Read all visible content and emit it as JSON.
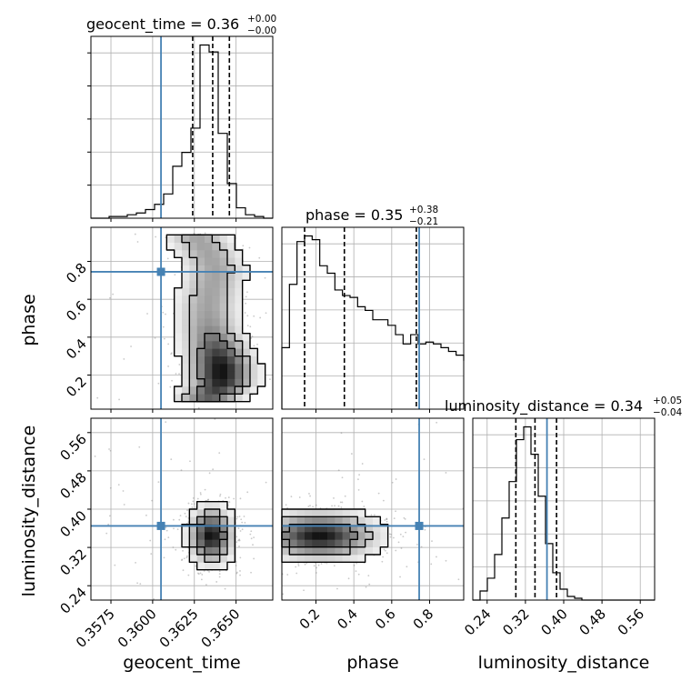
{
  "chart_data": {
    "type": "corner",
    "truth_color": "#4682b4",
    "parameters": [
      {
        "name": "geocent_time",
        "axis_label": "geocent_time",
        "truth": 0.3605,
        "median": 0.36,
        "plus": 0.0,
        "minus": 0.0,
        "title_main": "geocent_time = 0.36",
        "title_plus": "+0.00",
        "title_minus": "−0.00",
        "range": [
          0.3563,
          0.3672
        ],
        "ticks": [
          0.3575,
          0.36,
          0.3625,
          0.365
        ],
        "tick_labels": [
          "0.3575",
          "0.3600",
          "0.3625",
          "0.3650"
        ],
        "quantiles": [
          0.3624,
          0.3636,
          0.3646
        ],
        "hist_edges_start": 0.3563,
        "hist_bin_width": 0.000545,
        "hist_counts": [
          0,
          0,
          1,
          1,
          2,
          3,
          5,
          8,
          14,
          30,
          38,
          52,
          100,
          96,
          49,
          20,
          6,
          2,
          1,
          0
        ]
      },
      {
        "name": "phase",
        "axis_label": "phase",
        "truth": 0.745,
        "median": 0.35,
        "plus": 0.38,
        "minus": 0.21,
        "title_main": "phase = 0.35",
        "title_plus": "+0.38",
        "title_minus": "−0.21",
        "range": [
          0.02,
          0.98
        ],
        "ticks": [
          0.2,
          0.4,
          0.6,
          0.8
        ],
        "tick_labels": [
          "0.2",
          "0.4",
          "0.6",
          "0.8"
        ],
        "quantiles": [
          0.14,
          0.35,
          0.73
        ],
        "hist_edges_start": 0.02,
        "hist_bin_width": 0.04,
        "hist_counts": [
          33,
          67,
          90,
          93,
          91,
          77,
          73,
          64,
          61,
          60,
          55,
          53,
          48,
          48,
          45,
          40,
          35,
          40,
          35,
          36,
          35,
          33,
          31,
          29,
          26
        ]
      },
      {
        "name": "luminosity_distance",
        "axis_label": "luminosity_distance",
        "truth": 0.365,
        "median": 0.34,
        "plus": 0.05,
        "minus": 0.04,
        "title_main": "luminosity_distance = 0.34",
        "title_plus": "+0.05",
        "title_minus": "−0.04",
        "range": [
          0.21,
          0.59
        ],
        "ticks": [
          0.24,
          0.32,
          0.4,
          0.48,
          0.56
        ],
        "tick_labels": [
          "0.24",
          "0.32",
          "0.40",
          "0.48",
          "0.56"
        ],
        "quantiles": [
          0.3,
          0.34,
          0.385
        ],
        "hist_edges_start": 0.21,
        "hist_bin_width": 0.0152,
        "hist_counts": [
          0,
          5,
          12,
          25,
          45,
          65,
          88,
          95,
          80,
          57,
          31,
          15,
          6,
          2,
          1,
          0,
          0,
          0,
          0,
          0,
          0,
          0,
          0,
          0,
          0
        ]
      }
    ],
    "pairs": [
      {
        "x": "geocent_time",
        "y": "phase",
        "ridge": [
          [
            0.3625,
            0.95
          ],
          [
            0.3633,
            0.85
          ],
          [
            0.3638,
            0.75
          ],
          [
            0.3635,
            0.65
          ],
          [
            0.3633,
            0.55
          ],
          [
            0.3634,
            0.45
          ],
          [
            0.3638,
            0.35
          ],
          [
            0.3641,
            0.25
          ],
          [
            0.3641,
            0.15
          ],
          [
            0.3634,
            0.08
          ]
        ],
        "width": 0.0012
      },
      {
        "x": "geocent_time",
        "y": "luminosity_distance",
        "center": [
          0.3635,
          0.345
        ],
        "sigma": [
          0.0008,
          0.035
        ]
      },
      {
        "x": "phase",
        "y": "luminosity_distance",
        "center": [
          0.22,
          0.345
        ],
        "sigma": [
          0.18,
          0.03
        ]
      }
    ]
  }
}
